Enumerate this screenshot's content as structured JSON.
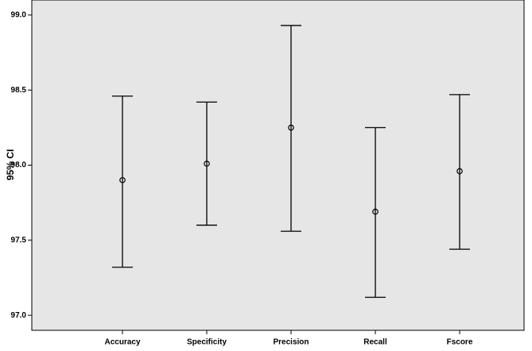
{
  "chart_data": {
    "type": "errorbar",
    "ylabel": "95% CI",
    "categories": [
      "Accuracy",
      "Specificity",
      "Precision",
      "Recall",
      "Fscore"
    ],
    "values": [
      97.9,
      98.01,
      98.25,
      97.69,
      97.96
    ],
    "lower": [
      97.32,
      97.6,
      97.56,
      97.12,
      97.44
    ],
    "upper": [
      98.46,
      98.42,
      98.93,
      98.25,
      98.47
    ],
    "color": "#000000",
    "ylim": [
      96.9,
      99.1
    ],
    "yticks": [
      {
        "value": 97,
        "label": "97.0"
      },
      {
        "value": 97.5,
        "label": "97.5"
      },
      {
        "value": 98,
        "label": "98.0"
      },
      {
        "value": 98.5,
        "label": "98.5"
      },
      {
        "value": 99,
        "label": "99.0"
      }
    ]
  }
}
